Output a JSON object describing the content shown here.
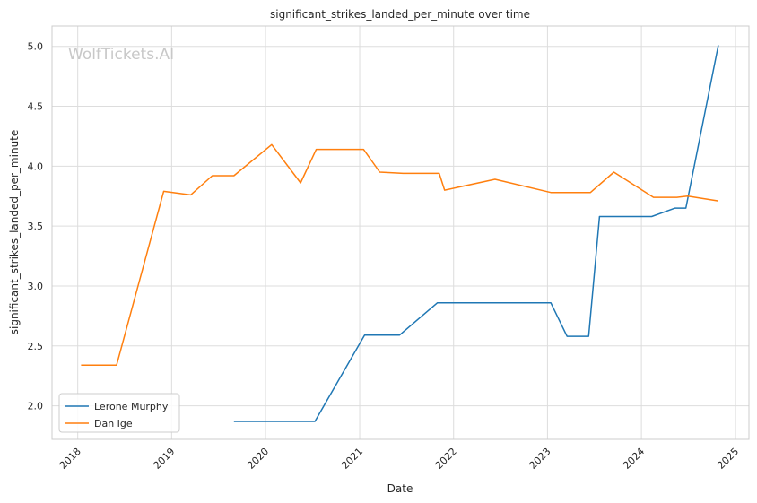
{
  "chart_data": {
    "type": "line",
    "title": "significant_strikes_landed_per_minute over time",
    "xlabel": "Date",
    "ylabel": "significant_strikes_landed_per_minute",
    "watermark": "WolfTickets.AI",
    "xlim": [
      "2017-09-23",
      "2025-02-22"
    ],
    "ylim": [
      1.72,
      5.17
    ],
    "x_ticks": [
      "2018",
      "2019",
      "2020",
      "2021",
      "2022",
      "2023",
      "2024",
      "2025"
    ],
    "y_ticks": [
      "2.0",
      "2.5",
      "3.0",
      "3.5",
      "4.0",
      "4.5",
      "5.0"
    ],
    "grid": true,
    "legend_position": "lower-left",
    "series": [
      {
        "name": "Lerone Murphy",
        "color": "#1f77b4",
        "points": [
          [
            "2019-08-31",
            1.87
          ],
          [
            "2020-07-11",
            1.87
          ],
          [
            "2021-01-20",
            2.59
          ],
          [
            "2021-06-05",
            2.59
          ],
          [
            "2021-10-30",
            2.86
          ],
          [
            "2023-01-14",
            2.86
          ],
          [
            "2023-03-18",
            2.58
          ],
          [
            "2023-06-10",
            2.58
          ],
          [
            "2023-07-22",
            3.58
          ],
          [
            "2024-02-10",
            3.58
          ],
          [
            "2024-05-11",
            3.65
          ],
          [
            "2024-06-22",
            3.65
          ],
          [
            "2024-10-26",
            5.01
          ]
        ]
      },
      {
        "name": "Dan Ige",
        "color": "#ff7f0e",
        "points": [
          [
            "2018-01-14",
            2.34
          ],
          [
            "2018-06-01",
            2.34
          ],
          [
            "2018-12-01",
            3.79
          ],
          [
            "2019-03-16",
            3.76
          ],
          [
            "2019-06-08",
            3.92
          ],
          [
            "2019-08-31",
            3.92
          ],
          [
            "2020-01-25",
            4.18
          ],
          [
            "2020-05-16",
            3.86
          ],
          [
            "2020-07-16",
            4.14
          ],
          [
            "2021-01-16",
            4.14
          ],
          [
            "2021-03-20",
            3.95
          ],
          [
            "2021-06-19",
            3.94
          ],
          [
            "2021-11-06",
            3.94
          ],
          [
            "2021-11-27",
            3.8
          ],
          [
            "2022-06-11",
            3.89
          ],
          [
            "2023-01-14",
            3.78
          ],
          [
            "2023-06-17",
            3.78
          ],
          [
            "2023-09-16",
            3.95
          ],
          [
            "2024-02-17",
            3.74
          ],
          [
            "2024-05-18",
            3.74
          ],
          [
            "2024-06-29",
            3.75
          ],
          [
            "2024-10-26",
            3.71
          ]
        ]
      }
    ]
  }
}
